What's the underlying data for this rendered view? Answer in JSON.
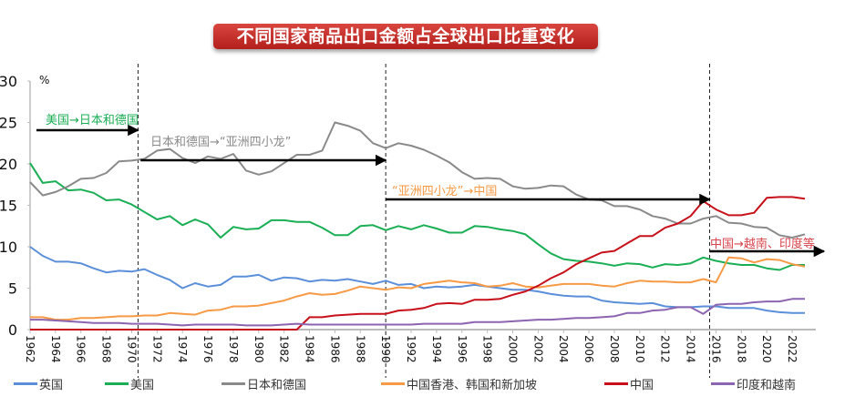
{
  "title": "不同国家商品出口金额占全球出口比重变化",
  "chart_data": {
    "type": "line",
    "title": "不同国家商品出口金额占全球出口比重变化",
    "ylabel": "%",
    "xlabel": "",
    "ylim": [
      0,
      30
    ],
    "yticks": [
      0,
      5,
      10,
      15,
      20,
      25,
      30
    ],
    "xticks": [
      "1962",
      "1964",
      "1966",
      "1968",
      "1970",
      "1972",
      "1974",
      "1976",
      "1978",
      "1980",
      "1982",
      "1984",
      "1986",
      "1988",
      "1990",
      "1992",
      "1994",
      "1996",
      "1998",
      "2000",
      "2002",
      "2004",
      "2006",
      "2008",
      "2010",
      "2012",
      "2014",
      "2016",
      "2018",
      "2020",
      "2022"
    ],
    "x_start": 1962,
    "x_end": 2023,
    "grid": false,
    "legend_position": "bottom",
    "series": [
      {
        "name": "英国",
        "color": "#5b8fd9",
        "values": [
          10,
          8.9,
          8.2,
          8.2,
          8.0,
          7.4,
          6.9,
          7.1,
          7.0,
          7.3,
          6.6,
          6.0,
          5.0,
          5.6,
          5.2,
          5.4,
          6.4,
          6.4,
          6.6,
          5.9,
          6.3,
          6.2,
          5.8,
          6.0,
          5.9,
          6.1,
          5.8,
          5.5,
          5.9,
          5.4,
          5.5,
          5.0,
          5.2,
          5.1,
          5.2,
          5.4,
          5.2,
          5.0,
          4.8,
          4.8,
          4.6,
          4.3,
          4.1,
          4.0,
          4.0,
          3.5,
          3.3,
          3.2,
          3.1,
          3.2,
          2.8,
          2.7,
          2.7,
          2.8,
          2.8,
          2.6,
          2.6,
          2.6,
          2.3,
          2.1,
          2.0,
          2.0
        ]
      },
      {
        "name": "美国",
        "color": "#1aae55",
        "values": [
          20.1,
          17.7,
          17.9,
          16.8,
          16.9,
          16.5,
          15.6,
          15.7,
          15.1,
          14.2,
          13.3,
          13.7,
          12.6,
          13.3,
          12.7,
          11.1,
          12.4,
          12.1,
          12.2,
          13.2,
          13.2,
          13.0,
          13.0,
          12.3,
          11.4,
          11.4,
          12.5,
          12.6,
          12.0,
          12.5,
          12.1,
          12.6,
          12.2,
          11.7,
          11.7,
          12.5,
          12.4,
          12.1,
          11.9,
          11.5,
          10.3,
          9.2,
          8.5,
          8.3,
          8.2,
          8.0,
          7.7,
          8.0,
          7.9,
          7.5,
          7.9,
          7.8,
          8.0,
          8.7,
          8.3,
          8.0,
          7.8,
          7.8,
          7.4,
          7.2,
          7.8,
          7.8
        ]
      },
      {
        "name": "日本和德国",
        "color": "#8a8a8a",
        "values": [
          17.8,
          16.2,
          16.6,
          17.3,
          18.2,
          18.3,
          18.9,
          20.3,
          20.4,
          20.6,
          21.6,
          21.8,
          20.7,
          20.1,
          20.9,
          20.6,
          21.2,
          19.2,
          18.7,
          19.1,
          20.1,
          21.1,
          21.1,
          21.6,
          25.0,
          24.6,
          24.0,
          22.5,
          21.9,
          22.5,
          22.2,
          21.7,
          21.0,
          20.2,
          19.0,
          18.2,
          18.3,
          18.2,
          17.3,
          17.0,
          17.1,
          17.4,
          17.3,
          16.3,
          15.7,
          15.6,
          14.9,
          14.9,
          14.5,
          13.7,
          13.4,
          12.8,
          12.8,
          13.4,
          13.7,
          12.9,
          12.8,
          12.4,
          12.3,
          11.4,
          11.1,
          11.5
        ]
      },
      {
        "name": "中国香港、韩国和新加坡",
        "color": "#f79a46",
        "values": [
          1.5,
          1.5,
          1.2,
          1.2,
          1.4,
          1.4,
          1.5,
          1.6,
          1.6,
          1.7,
          1.7,
          2.0,
          1.9,
          1.8,
          2.3,
          2.4,
          2.8,
          2.8,
          2.9,
          3.2,
          3.5,
          4.0,
          4.4,
          4.2,
          4.3,
          4.7,
          5.2,
          5.0,
          4.8,
          5.1,
          5.0,
          5.5,
          5.7,
          5.9,
          5.7,
          5.6,
          5.2,
          5.3,
          5.6,
          5.2,
          5.1,
          5.3,
          5.5,
          5.5,
          5.5,
          5.3,
          5.2,
          5.6,
          5.9,
          5.8,
          5.8,
          5.7,
          5.7,
          6.1,
          5.7,
          8.7,
          8.6,
          8.1,
          8.5,
          8.4,
          7.9,
          7.6
        ]
      },
      {
        "name": "中国",
        "color": "#c8101a",
        "values": [
          0,
          0,
          0,
          0,
          0,
          0,
          0,
          0,
          0,
          0,
          0,
          0,
          0,
          0,
          0,
          0,
          0,
          0,
          0,
          0,
          0,
          0,
          1.5,
          1.5,
          1.7,
          1.8,
          1.9,
          1.9,
          1.9,
          2.3,
          2.4,
          2.6,
          3.1,
          3.2,
          3.1,
          3.6,
          3.6,
          3.7,
          4.2,
          4.6,
          5.3,
          6.2,
          6.9,
          7.9,
          8.6,
          9.3,
          9.5,
          10.4,
          11.3,
          11.3,
          12.3,
          12.8,
          13.7,
          15.5,
          14.5,
          13.8,
          13.8,
          14.1,
          15.9,
          16.0,
          16.0,
          15.8
        ]
      },
      {
        "name": "印度和越南",
        "color": "#8c64b0",
        "values": [
          1.2,
          1.2,
          1.1,
          1.0,
          0.9,
          0.8,
          0.8,
          0.8,
          0.7,
          0.7,
          0.7,
          0.6,
          0.5,
          0.6,
          0.6,
          0.6,
          0.6,
          0.5,
          0.5,
          0.5,
          0.6,
          0.7,
          0.6,
          0.6,
          0.6,
          0.6,
          0.6,
          0.6,
          0.6,
          0.6,
          0.6,
          0.7,
          0.7,
          0.7,
          0.7,
          0.9,
          0.9,
          0.9,
          1.0,
          1.1,
          1.2,
          1.2,
          1.3,
          1.4,
          1.4,
          1.5,
          1.6,
          2.0,
          2.0,
          2.3,
          2.4,
          2.7,
          2.7,
          1.9,
          3.0,
          3.1,
          3.1,
          3.3,
          3.4,
          3.4,
          3.7,
          3.7
        ]
      }
    ],
    "period_boundaries": [
      1970.5,
      1990,
      2015.5
    ],
    "annotations": [
      {
        "text": "美国→日本和德国",
        "color": "#1aae55",
        "from": 1962.5,
        "to": 1970.5
      },
      {
        "text": "日本和德国→“亚洲四小龙”",
        "color": "#8a8a8a",
        "from": 1970.7,
        "to": 1990
      },
      {
        "text": "“亚洲四小龙”→中国",
        "color": "#f79a46",
        "from": 1990,
        "to": 2015.5
      },
      {
        "text": "中国→越南、印度等",
        "color": "#d9434a",
        "from": 2015.5,
        "to": 2024.5
      }
    ]
  }
}
